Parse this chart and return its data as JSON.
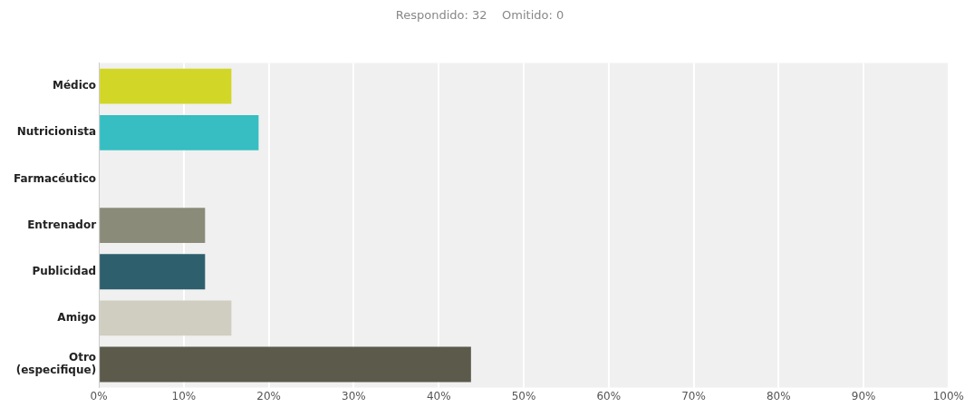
{
  "chart_data": {
    "type": "bar",
    "orientation": "horizontal",
    "subtitle": "Respondido: 32    Omitido: 0",
    "categories": [
      "Médico",
      "Nutricionista",
      "Farmacéutico",
      "Entrenador",
      "Publicidad",
      "Amigo",
      "Otro (especifique)"
    ],
    "values": [
      15.6,
      18.8,
      0,
      12.5,
      12.5,
      15.6,
      43.8
    ],
    "colors": [
      "#d1d627",
      "#36bec2",
      "#e0a040",
      "#8a8b79",
      "#2e5f6c",
      "#d0cec0",
      "#5b5a4b"
    ],
    "xlim": [
      0,
      100
    ],
    "xticks": [
      {
        "value": 0,
        "label": "0%"
      },
      {
        "value": 10,
        "label": "10%"
      },
      {
        "value": 20,
        "label": "20%"
      },
      {
        "value": 30,
        "label": "30%"
      },
      {
        "value": 40,
        "label": "40%"
      },
      {
        "value": 50,
        "label": "50%"
      },
      {
        "value": 60,
        "label": "60%"
      },
      {
        "value": 70,
        "label": "70%"
      },
      {
        "value": 80,
        "label": "80%"
      },
      {
        "value": 90,
        "label": "90%"
      },
      {
        "value": 100,
        "label": "100%"
      }
    ],
    "grid": "x",
    "legend": false
  }
}
